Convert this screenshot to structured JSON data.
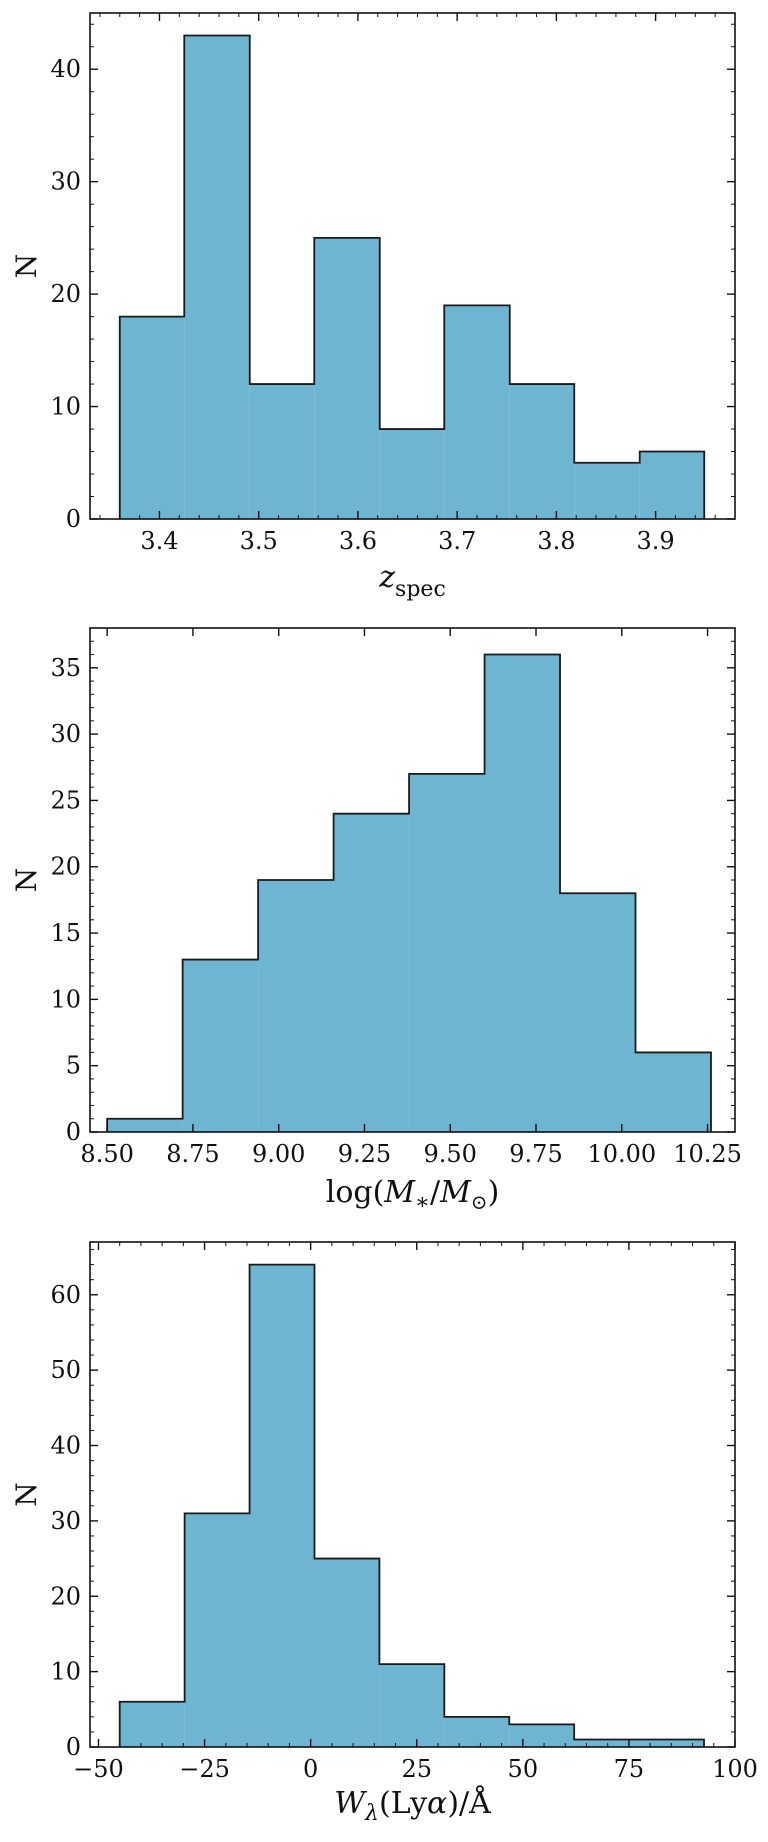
{
  "chart_data": [
    {
      "type": "bar",
      "subtype": "histogram",
      "xlabel": "z_spec",
      "ylabel": "N",
      "bin_edges": [
        3.36,
        3.425,
        3.491,
        3.556,
        3.622,
        3.687,
        3.753,
        3.818,
        3.884,
        3.949
      ],
      "values": [
        18,
        43,
        12,
        25,
        8,
        19,
        12,
        5,
        6
      ],
      "xlim": [
        3.33,
        3.98
      ],
      "ylim": [
        0,
        45
      ],
      "xticks": [
        3.4,
        3.5,
        3.6,
        3.7,
        3.8,
        3.9
      ],
      "xtick_labels": [
        "3.4",
        "3.5",
        "3.6",
        "3.7",
        "3.8",
        "3.9"
      ],
      "yticks": [
        0,
        10,
        20,
        30,
        40
      ],
      "ytick_labels": [
        "0",
        "10",
        "20",
        "30",
        "40"
      ],
      "grid": false,
      "fill_color": "#6eb5d1",
      "edge_color": "#1a1a1a"
    },
    {
      "type": "bar",
      "subtype": "histogram",
      "xlabel": "log(M*/M⊙)",
      "ylabel": "N",
      "bin_edges": [
        8.5,
        8.72,
        8.94,
        9.16,
        9.38,
        9.6,
        9.82,
        10.04,
        10.26
      ],
      "values": [
        1,
        13,
        19,
        24,
        27,
        36,
        18,
        6
      ],
      "xlim": [
        8.45,
        10.33
      ],
      "ylim": [
        0,
        38
      ],
      "xticks": [
        8.5,
        8.75,
        9.0,
        9.25,
        9.5,
        9.75,
        10.0,
        10.25
      ],
      "xtick_labels": [
        "8.50",
        "8.75",
        "9.00",
        "9.25",
        "9.50",
        "9.75",
        "10.00",
        "10.25"
      ],
      "yticks": [
        0,
        5,
        10,
        15,
        20,
        25,
        30,
        35
      ],
      "ytick_labels": [
        "0",
        "5",
        "10",
        "15",
        "20",
        "25",
        "30",
        "35"
      ],
      "grid": false,
      "fill_color": "#6eb5d1",
      "edge_color": "#1a1a1a"
    },
    {
      "type": "bar",
      "subtype": "histogram",
      "xlabel": "Wλ(Lyα)/Å",
      "ylabel": "N",
      "bin_edges": [
        -45,
        -29.7,
        -14.4,
        0.9,
        16.2,
        31.5,
        46.8,
        62.1,
        77.4,
        92.7
      ],
      "values": [
        6,
        31,
        64,
        25,
        11,
        4,
        3,
        1,
        1
      ],
      "xlim": [
        -52,
        100
      ],
      "ylim": [
        0,
        67
      ],
      "xticks": [
        -50,
        -25,
        0,
        25,
        50,
        75,
        100
      ],
      "xtick_labels": [
        "−50",
        "−25",
        "0",
        "25",
        "50",
        "75",
        "100"
      ],
      "yticks": [
        0,
        10,
        20,
        30,
        40,
        50,
        60
      ],
      "ytick_labels": [
        "0",
        "10",
        "20",
        "30",
        "40",
        "50",
        "60"
      ],
      "grid": false,
      "fill_color": "#6eb5d1",
      "edge_color": "#1a1a1a"
    }
  ]
}
